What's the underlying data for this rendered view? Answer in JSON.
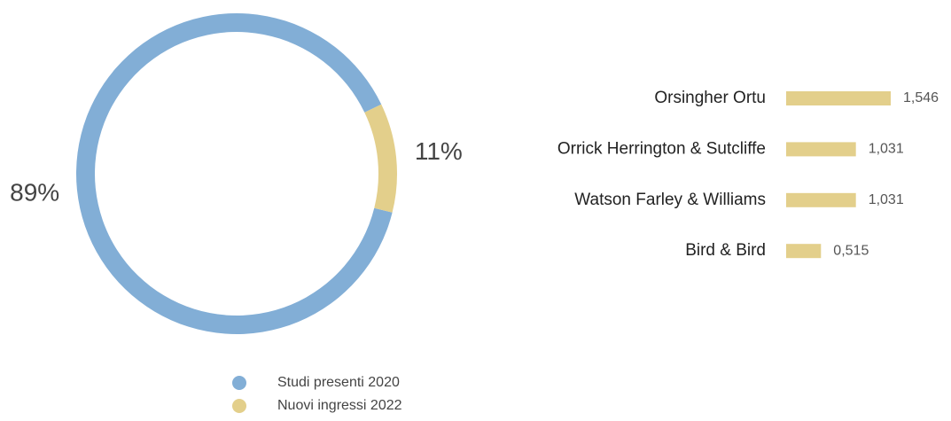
{
  "chart_data": [
    {
      "type": "pie",
      "categories": [
        "Studi presenti 2020",
        "Nuovi ingressi 2022"
      ],
      "values": [
        89,
        11
      ],
      "value_labels": [
        "89%",
        "11%"
      ],
      "colors": [
        "#82aed6",
        "#e3cf8b"
      ]
    },
    {
      "type": "bar",
      "categories": [
        "Orsingher Ortu",
        "Orrick Herrington & Sutcliffe",
        "Watson Farley & Williams",
        "Bird & Bird"
      ],
      "values": [
        1.546,
        1.031,
        1.031,
        0.515
      ],
      "value_labels": [
        "1,546",
        "1,031",
        "1,031",
        "0,515"
      ],
      "color": "#e3cf8b"
    }
  ]
}
